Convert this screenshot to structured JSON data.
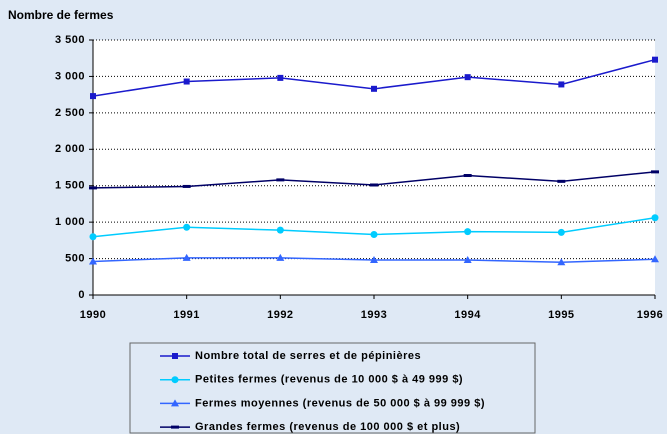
{
  "chart_data": {
    "type": "line",
    "y_axis_label": "Nombre de fermes",
    "x": [
      1990,
      1991,
      1992,
      1993,
      1994,
      1995,
      1996
    ],
    "xlim": [
      1990,
      1996
    ],
    "ylim": [
      0,
      3500
    ],
    "yticks": [
      0,
      500,
      {
        "value": 1000,
        "label": "1 000"
      },
      {
        "value": 1500,
        "label": "1 500"
      },
      {
        "value": 2000,
        "label": "2 000"
      },
      {
        "value": 2500,
        "label": "2 500"
      },
      {
        "value": 3000,
        "label": "3 000"
      },
      {
        "value": 3500,
        "label": "3 500"
      }
    ],
    "grid": true,
    "legend": "bottom",
    "series": [
      {
        "name": "Nombre total de serres et de pépinières",
        "color": "#1a1acc",
        "marker": "square",
        "values": [
          2730,
          2930,
          2980,
          2830,
          2990,
          2890,
          3230
        ]
      },
      {
        "name": "Petites fermes (revenus de 10 000 $ à 49 999 $)",
        "color": "#00ccff",
        "marker": "circle",
        "values": [
          800,
          930,
          890,
          830,
          870,
          860,
          1060
        ]
      },
      {
        "name": "Fermes moyennes (revenus de 50 000 $ à 99 999 $)",
        "color": "#3366ff",
        "marker": "triangle",
        "values": [
          460,
          510,
          510,
          480,
          480,
          450,
          490
        ]
      },
      {
        "name": "Grandes fermes (revenus de 100 000 $ et plus)",
        "color": "#000066",
        "marker": "dash",
        "values": [
          1470,
          1490,
          1580,
          1510,
          1640,
          1560,
          1690
        ]
      }
    ]
  }
}
